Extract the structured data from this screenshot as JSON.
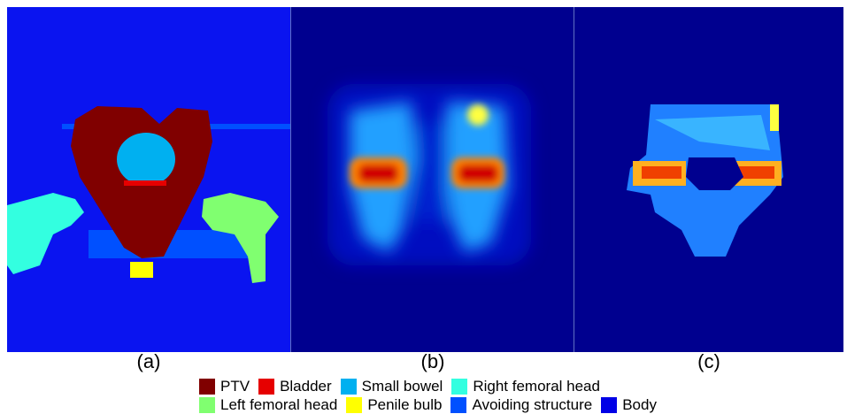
{
  "panels": [
    {
      "label": "(a)"
    },
    {
      "label": "(b)"
    },
    {
      "label": "(c)"
    }
  ],
  "legend": {
    "rows": [
      [
        {
          "name": "PTV",
          "color": "#800000"
        },
        {
          "name": "Bladder",
          "color": "#e60000"
        },
        {
          "name": "Small bowel",
          "color": "#00b0f0"
        },
        {
          "name": "Right femoral head",
          "color": "#33ffe0"
        }
      ],
      [
        {
          "name": "Left femoral head",
          "color": "#80ff70"
        },
        {
          "name": "Penile bulb",
          "color": "#ffff00"
        },
        {
          "name": "Avoiding structure",
          "color": "#0050ff"
        },
        {
          "name": "Body",
          "color": "#0000e6"
        }
      ]
    ]
  }
}
